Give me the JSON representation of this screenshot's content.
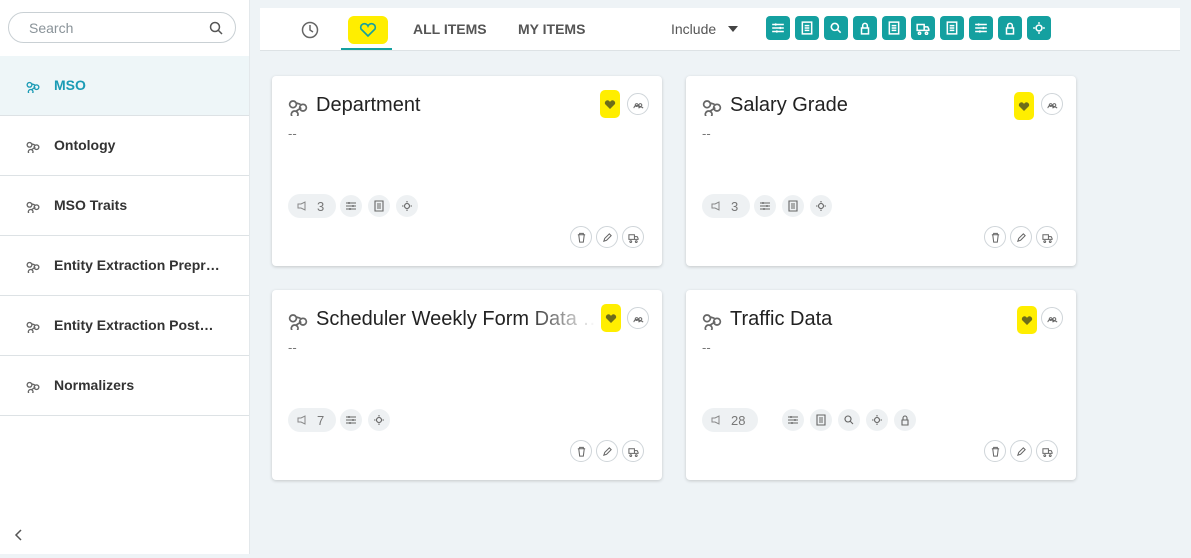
{
  "search": {
    "placeholder": "Search"
  },
  "sidebar": {
    "items": [
      "MSO",
      "Ontology",
      "MSO Traits",
      "Entity Extraction Prepr…",
      "Entity Extraction Post…",
      "Normalizers"
    ]
  },
  "toolbar": {
    "tabs": [
      "ALL ITEMS",
      "MY ITEMS"
    ],
    "filter": "Include"
  },
  "cards": [
    {
      "title": "Department",
      "description": "--",
      "count": "3"
    },
    {
      "title": "Salary Grade",
      "description": "--",
      "count": "3"
    },
    {
      "title": "Scheduler Weekly Form Data …",
      "description": "--",
      "count": "7"
    },
    {
      "title": "Traffic Data",
      "description": "--",
      "count": "28"
    }
  ]
}
